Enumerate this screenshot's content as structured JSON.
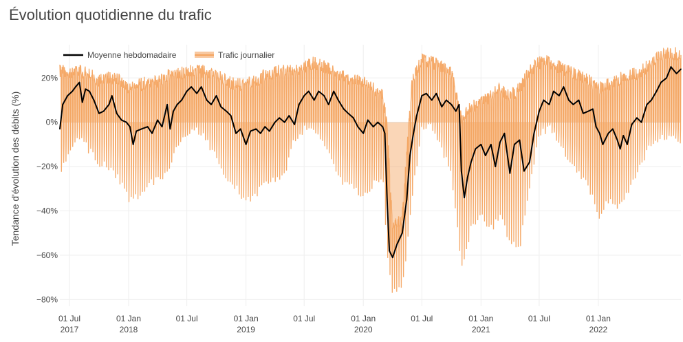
{
  "title": "Évolution quotidienne du trafic",
  "colors": {
    "weekly": "#000000",
    "daily": "#f4a460",
    "grid": "#eeeeee",
    "zero": "#e0e0e0"
  },
  "chart_data": {
    "type": "line",
    "ylabel": "Tendance d'évolution des débits (%)",
    "ylim": [
      -83,
      35
    ],
    "xlim": [
      "2017-06-01",
      "2022-09-15"
    ],
    "grid": true,
    "legend_position": "top-left",
    "x_ticks": [
      {
        "date": "2017-07-01",
        "label": "01 Jul",
        "year": "2017"
      },
      {
        "date": "2018-01-01",
        "label": "01 Jan",
        "year": "2018"
      },
      {
        "date": "2018-07-01",
        "label": "01 Jul",
        "year": ""
      },
      {
        "date": "2019-01-01",
        "label": "01 Jan",
        "year": "2019"
      },
      {
        "date": "2019-07-01",
        "label": "01 Jul",
        "year": ""
      },
      {
        "date": "2020-01-01",
        "label": "01 Jan",
        "year": "2020"
      },
      {
        "date": "2020-07-01",
        "label": "01 Jul",
        "year": ""
      },
      {
        "date": "2021-01-01",
        "label": "01 Jan",
        "year": "2021"
      },
      {
        "date": "2021-07-01",
        "label": "01 Jul",
        "year": ""
      },
      {
        "date": "2022-01-01",
        "label": "01 Jan",
        "year": "2022"
      }
    ],
    "y_ticks": [
      {
        "value": 20,
        "label": "20%"
      },
      {
        "value": 0,
        "label": "0%"
      },
      {
        "value": -20,
        "label": "−20%"
      },
      {
        "value": -40,
        "label": "−40%"
      },
      {
        "value": -60,
        "label": "−60%"
      },
      {
        "value": -80,
        "label": "−80%"
      }
    ],
    "series": [
      {
        "name": "Moyenne hebdomadaire",
        "style": "line",
        "points": [
          [
            "2017-06-01",
            -3
          ],
          [
            "2017-06-10",
            8
          ],
          [
            "2017-06-25",
            12
          ],
          [
            "2017-07-10",
            14
          ],
          [
            "2017-07-20",
            16
          ],
          [
            "2017-08-01",
            18
          ],
          [
            "2017-08-10",
            9
          ],
          [
            "2017-08-20",
            15
          ],
          [
            "2017-09-01",
            14
          ],
          [
            "2017-09-15",
            10
          ],
          [
            "2017-10-01",
            4
          ],
          [
            "2017-10-15",
            5
          ],
          [
            "2017-11-01",
            8
          ],
          [
            "2017-11-10",
            12
          ],
          [
            "2017-11-25",
            4
          ],
          [
            "2017-12-10",
            1
          ],
          [
            "2017-12-25",
            0
          ],
          [
            "2018-01-05",
            -2
          ],
          [
            "2018-01-15",
            -10
          ],
          [
            "2018-01-25",
            -4
          ],
          [
            "2018-02-10",
            -3
          ],
          [
            "2018-03-01",
            -2
          ],
          [
            "2018-03-15",
            -5
          ],
          [
            "2018-04-01",
            1
          ],
          [
            "2018-04-15",
            -2
          ],
          [
            "2018-05-01",
            8
          ],
          [
            "2018-05-10",
            -3
          ],
          [
            "2018-05-20",
            5
          ],
          [
            "2018-06-01",
            8
          ],
          [
            "2018-06-15",
            10
          ],
          [
            "2018-07-01",
            14
          ],
          [
            "2018-07-15",
            16
          ],
          [
            "2018-08-01",
            13
          ],
          [
            "2018-08-15",
            16
          ],
          [
            "2018-09-01",
            10
          ],
          [
            "2018-09-15",
            8
          ],
          [
            "2018-10-01",
            12
          ],
          [
            "2018-10-15",
            7
          ],
          [
            "2018-11-01",
            5
          ],
          [
            "2018-11-15",
            3
          ],
          [
            "2018-12-01",
            -5
          ],
          [
            "2018-12-15",
            -3
          ],
          [
            "2019-01-01",
            -10
          ],
          [
            "2019-01-15",
            -4
          ],
          [
            "2019-02-01",
            -3
          ],
          [
            "2019-02-15",
            -5
          ],
          [
            "2019-03-01",
            -2
          ],
          [
            "2019-03-15",
            -4
          ],
          [
            "2019-04-01",
            0
          ],
          [
            "2019-04-15",
            2
          ],
          [
            "2019-05-01",
            0
          ],
          [
            "2019-05-15",
            3
          ],
          [
            "2019-06-01",
            -1
          ],
          [
            "2019-06-15",
            8
          ],
          [
            "2019-07-01",
            12
          ],
          [
            "2019-07-15",
            14
          ],
          [
            "2019-08-01",
            10
          ],
          [
            "2019-08-15",
            14
          ],
          [
            "2019-09-01",
            12
          ],
          [
            "2019-09-15",
            8
          ],
          [
            "2019-10-01",
            14
          ],
          [
            "2019-10-15",
            10
          ],
          [
            "2019-11-01",
            6
          ],
          [
            "2019-11-15",
            4
          ],
          [
            "2019-12-01",
            2
          ],
          [
            "2019-12-15",
            -2
          ],
          [
            "2020-01-01",
            -5
          ],
          [
            "2020-01-15",
            1
          ],
          [
            "2020-02-01",
            -2
          ],
          [
            "2020-02-15",
            0
          ],
          [
            "2020-03-01",
            -2
          ],
          [
            "2020-03-08",
            -5
          ],
          [
            "2020-03-15",
            -35
          ],
          [
            "2020-03-22",
            -58
          ],
          [
            "2020-04-01",
            -61
          ],
          [
            "2020-04-15",
            -55
          ],
          [
            "2020-05-01",
            -50
          ],
          [
            "2020-05-15",
            -35
          ],
          [
            "2020-05-25",
            -15
          ],
          [
            "2020-06-05",
            -5
          ],
          [
            "2020-06-15",
            3
          ],
          [
            "2020-07-01",
            12
          ],
          [
            "2020-07-15",
            13
          ],
          [
            "2020-08-01",
            10
          ],
          [
            "2020-08-15",
            13
          ],
          [
            "2020-09-01",
            7
          ],
          [
            "2020-09-15",
            10
          ],
          [
            "2020-10-01",
            8
          ],
          [
            "2020-10-15",
            5
          ],
          [
            "2020-10-25",
            8
          ],
          [
            "2020-11-01",
            -22
          ],
          [
            "2020-11-10",
            -34
          ],
          [
            "2020-11-20",
            -25
          ],
          [
            "2020-12-01",
            -18
          ],
          [
            "2020-12-15",
            -12
          ],
          [
            "2021-01-01",
            -10
          ],
          [
            "2021-01-15",
            -15
          ],
          [
            "2021-02-01",
            -10
          ],
          [
            "2021-02-15",
            -20
          ],
          [
            "2021-03-01",
            -9
          ],
          [
            "2021-03-15",
            -5
          ],
          [
            "2021-04-01",
            -23
          ],
          [
            "2021-04-15",
            -10
          ],
          [
            "2021-05-01",
            -8
          ],
          [
            "2021-05-15",
            -22
          ],
          [
            "2021-06-01",
            -18
          ],
          [
            "2021-06-15",
            -5
          ],
          [
            "2021-07-01",
            5
          ],
          [
            "2021-07-15",
            10
          ],
          [
            "2021-08-01",
            8
          ],
          [
            "2021-08-15",
            14
          ],
          [
            "2021-09-01",
            12
          ],
          [
            "2021-09-15",
            16
          ],
          [
            "2021-10-01",
            10
          ],
          [
            "2021-10-15",
            8
          ],
          [
            "2021-11-01",
            10
          ],
          [
            "2021-11-15",
            4
          ],
          [
            "2021-12-01",
            5
          ],
          [
            "2021-12-15",
            6
          ],
          [
            "2021-12-25",
            -2
          ],
          [
            "2022-01-05",
            -5
          ],
          [
            "2022-01-15",
            -10
          ],
          [
            "2022-02-01",
            -5
          ],
          [
            "2022-02-15",
            -3
          ],
          [
            "2022-03-01",
            -8
          ],
          [
            "2022-03-10",
            -12
          ],
          [
            "2022-03-20",
            -6
          ],
          [
            "2022-04-01",
            -10
          ],
          [
            "2022-04-15",
            -1
          ],
          [
            "2022-05-01",
            2
          ],
          [
            "2022-05-15",
            0
          ],
          [
            "2022-06-01",
            8
          ],
          [
            "2022-06-15",
            10
          ],
          [
            "2022-07-01",
            14
          ],
          [
            "2022-07-15",
            18
          ],
          [
            "2022-08-01",
            20
          ],
          [
            "2022-08-15",
            25
          ],
          [
            "2022-09-01",
            22
          ],
          [
            "2022-09-15",
            24
          ]
        ]
      },
      {
        "name": "Trafic journalier",
        "style": "band",
        "points": [
          [
            "2017-06-01",
            -26,
            26
          ],
          [
            "2017-07-01",
            -15,
            26
          ],
          [
            "2017-08-01",
            -8,
            26
          ],
          [
            "2017-09-01",
            -15,
            25
          ],
          [
            "2017-10-01",
            -20,
            22
          ],
          [
            "2017-11-01",
            -22,
            23
          ],
          [
            "2017-12-01",
            -28,
            22
          ],
          [
            "2018-01-01",
            -37,
            18
          ],
          [
            "2018-02-01",
            -35,
            20
          ],
          [
            "2018-03-01",
            -30,
            21
          ],
          [
            "2018-04-01",
            -28,
            21
          ],
          [
            "2018-05-01",
            -25,
            24
          ],
          [
            "2018-06-01",
            -12,
            25
          ],
          [
            "2018-07-01",
            -8,
            26
          ],
          [
            "2018-08-01",
            -5,
            26
          ],
          [
            "2018-09-01",
            -10,
            26
          ],
          [
            "2018-10-01",
            -18,
            24
          ],
          [
            "2018-11-01",
            -28,
            22
          ],
          [
            "2018-12-01",
            -32,
            20
          ],
          [
            "2019-01-01",
            -38,
            20
          ],
          [
            "2019-02-01",
            -35,
            22
          ],
          [
            "2019-03-01",
            -30,
            24
          ],
          [
            "2019-04-01",
            -28,
            26
          ],
          [
            "2019-05-01",
            -25,
            26
          ],
          [
            "2019-06-01",
            -10,
            26
          ],
          [
            "2019-07-01",
            -5,
            28
          ],
          [
            "2019-08-01",
            -5,
            30
          ],
          [
            "2019-09-01",
            -12,
            28
          ],
          [
            "2019-10-01",
            -22,
            26
          ],
          [
            "2019-11-01",
            -30,
            24
          ],
          [
            "2019-12-01",
            -32,
            22
          ],
          [
            "2020-01-01",
            -35,
            22
          ],
          [
            "2020-02-01",
            -30,
            18
          ],
          [
            "2020-03-01",
            -25,
            16
          ],
          [
            "2020-03-15",
            -60,
            2
          ],
          [
            "2020-04-01",
            -79,
            -45
          ],
          [
            "2020-05-01",
            -78,
            -40
          ],
          [
            "2020-06-01",
            -35,
            22
          ],
          [
            "2020-07-01",
            -5,
            32
          ],
          [
            "2020-08-01",
            -3,
            30
          ],
          [
            "2020-09-01",
            -15,
            28
          ],
          [
            "2020-10-01",
            -25,
            25
          ],
          [
            "2020-11-01",
            -68,
            5
          ],
          [
            "2020-12-01",
            -50,
            10
          ],
          [
            "2021-01-01",
            -45,
            12
          ],
          [
            "2021-02-01",
            -50,
            15
          ],
          [
            "2021-03-01",
            -45,
            18
          ],
          [
            "2021-04-01",
            -55,
            15
          ],
          [
            "2021-05-01",
            -60,
            18
          ],
          [
            "2021-06-01",
            -30,
            26
          ],
          [
            "2021-07-01",
            -8,
            30
          ],
          [
            "2021-08-01",
            -5,
            30
          ],
          [
            "2021-09-01",
            -12,
            28
          ],
          [
            "2021-10-01",
            -18,
            26
          ],
          [
            "2021-11-01",
            -25,
            24
          ],
          [
            "2021-12-01",
            -30,
            22
          ],
          [
            "2022-01-01",
            -45,
            18
          ],
          [
            "2022-02-01",
            -38,
            20
          ],
          [
            "2022-03-01",
            -40,
            22
          ],
          [
            "2022-04-01",
            -35,
            24
          ],
          [
            "2022-05-01",
            -25,
            25
          ],
          [
            "2022-06-01",
            -15,
            28
          ],
          [
            "2022-07-01",
            -10,
            32
          ],
          [
            "2022-08-01",
            -8,
            34
          ],
          [
            "2022-09-15",
            -12,
            34
          ]
        ]
      }
    ]
  }
}
